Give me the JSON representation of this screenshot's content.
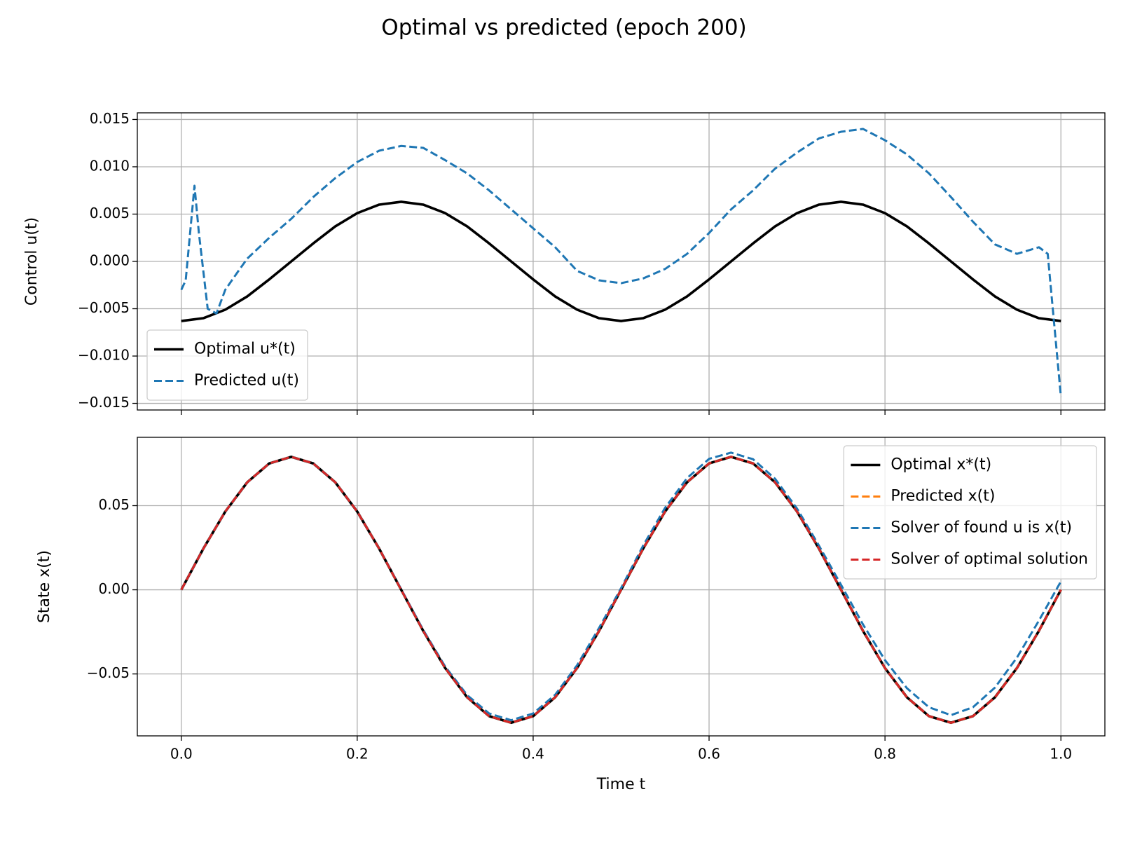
{
  "title": "Optimal vs predicted (epoch 200)",
  "chart_data": [
    {
      "type": "line",
      "y_label": "Control u(t)",
      "grid": true,
      "legend": "lower left",
      "xticklabels": false,
      "xlim": [
        -0.05,
        1.05
      ],
      "xticks": [
        0,
        0.2,
        0.4,
        0.6,
        0.8,
        1
      ],
      "ylim": [
        -0.0157,
        0.0157
      ],
      "yticks": [
        {
          "value": -0.015,
          "label": "−0.015"
        },
        {
          "value": -0.01,
          "label": "−0.010"
        },
        {
          "value": -0.005,
          "label": "−0.005"
        },
        {
          "value": 0,
          "label": "0.000"
        },
        0.005,
        {
          "value": 0.01,
          "label": "0.010"
        },
        0.015
      ],
      "x": [
        0,
        0.025,
        0.05,
        0.075,
        0.1,
        0.125,
        0.15,
        0.175,
        0.2,
        0.225,
        0.25,
        0.275,
        0.3,
        0.325,
        0.35,
        0.375,
        0.4,
        0.425,
        0.45,
        0.475,
        0.5,
        0.525,
        0.55,
        0.575,
        0.6,
        0.625,
        0.65,
        0.675,
        0.7,
        0.725,
        0.75,
        0.775,
        0.8,
        0.825,
        0.85,
        0.875,
        0.9,
        0.925,
        0.95,
        0.975,
        1
      ],
      "series": [
        {
          "name": "Optimal u*(t)",
          "color": "#000000",
          "linestyle": "solid",
          "values": [
            -0.0063,
            -0.006,
            -0.0051,
            -0.0037,
            -0.0019,
            0,
            0.0019,
            0.0037,
            0.0051,
            0.006,
            0.0063,
            0.006,
            0.0051,
            0.0037,
            0.0019,
            0,
            -0.0019,
            -0.0037,
            -0.0051,
            -0.006,
            -0.0063,
            -0.006,
            -0.0051,
            -0.0037,
            -0.0019,
            0,
            0.0019,
            0.0037,
            0.0051,
            0.006,
            0.0063,
            0.006,
            0.0051,
            0.0037,
            0.0019,
            0,
            -0.0019,
            -0.0037,
            -0.0051,
            -0.006,
            -0.0063
          ]
        },
        {
          "name": "Predicted u(t)",
          "color": "#1f77b4",
          "linestyle": "dashed",
          "x": [
            0,
            0.005,
            0.015,
            0.02,
            0.03,
            0.04,
            0.05,
            0.065,
            0.075,
            0.1,
            0.125,
            0.15,
            0.175,
            0.2,
            0.225,
            0.25,
            0.275,
            0.3,
            0.325,
            0.35,
            0.375,
            0.4,
            0.425,
            0.45,
            0.475,
            0.5,
            0.525,
            0.55,
            0.575,
            0.6,
            0.625,
            0.65,
            0.675,
            0.7,
            0.725,
            0.75,
            0.775,
            0.8,
            0.825,
            0.85,
            0.875,
            0.9,
            0.925,
            0.95,
            0.975,
            0.985,
            1
          ],
          "values": [
            -0.003,
            -0.002,
            0.008,
            0.003,
            -0.005,
            -0.0055,
            -0.003,
            -0.001,
            0.0003,
            0.0025,
            0.0045,
            0.0068,
            0.0088,
            0.0105,
            0.0117,
            0.0122,
            0.012,
            0.0107,
            0.0093,
            0.0075,
            0.0055,
            0.0035,
            0.0015,
            -0.001,
            -0.002,
            -0.0023,
            -0.0018,
            -0.0008,
            0.0008,
            0.003,
            0.0055,
            0.0075,
            0.0098,
            0.0115,
            0.013,
            0.0137,
            0.014,
            0.0128,
            0.0113,
            0.0093,
            0.0068,
            0.0042,
            0.0018,
            0.0008,
            0.0015,
            0.0008,
            -0.0143
          ]
        }
      ]
    },
    {
      "type": "line",
      "x_label": "Time t",
      "y_label": "State x(t)",
      "grid": true,
      "legend": "upper right",
      "xticklabels": true,
      "xlim": [
        -0.05,
        1.05
      ],
      "xticks": [
        {
          "value": 0,
          "label": "0.0"
        },
        0.2,
        0.4,
        0.6,
        0.8,
        {
          "value": 1,
          "label": "1.0"
        }
      ],
      "ylim": [
        -0.0868,
        0.0906
      ],
      "yticks": [
        {
          "value": -0.05,
          "label": "−0.05"
        },
        {
          "value": 0,
          "label": "0.00"
        },
        0.05
      ],
      "x": [
        0,
        0.025,
        0.05,
        0.075,
        0.1,
        0.125,
        0.15,
        0.175,
        0.2,
        0.225,
        0.25,
        0.275,
        0.3,
        0.325,
        0.35,
        0.375,
        0.4,
        0.425,
        0.45,
        0.475,
        0.5,
        0.525,
        0.55,
        0.575,
        0.6,
        0.625,
        0.65,
        0.675,
        0.7,
        0.725,
        0.75,
        0.775,
        0.8,
        0.825,
        0.85,
        0.875,
        0.9,
        0.925,
        0.95,
        0.975,
        1
      ],
      "series": [
        {
          "name": "Optimal x*(t)",
          "color": "#000000",
          "linestyle": "solid",
          "values": [
            0,
            0.0244,
            0.0465,
            0.0639,
            0.0751,
            0.079,
            0.0751,
            0.0639,
            0.0465,
            0.0244,
            0,
            -0.0244,
            -0.0465,
            -0.0639,
            -0.0751,
            -0.079,
            -0.0751,
            -0.0639,
            -0.0465,
            -0.0244,
            0,
            0.0244,
            0.0465,
            0.0639,
            0.0751,
            0.079,
            0.0751,
            0.0639,
            0.0465,
            0.0244,
            0,
            -0.0244,
            -0.0465,
            -0.0639,
            -0.0751,
            -0.079,
            -0.0751,
            -0.0639,
            -0.0465,
            -0.0244,
            0
          ]
        },
        {
          "name": "Predicted x(t)",
          "color": "#ff7f0e",
          "linestyle": "dashed",
          "values": [
            0,
            0.0244,
            0.0465,
            0.0639,
            0.0751,
            0.079,
            0.0751,
            0.0639,
            0.0465,
            0.0244,
            0,
            -0.0244,
            -0.0465,
            -0.0639,
            -0.0751,
            -0.079,
            -0.0751,
            -0.0639,
            -0.0465,
            -0.0244,
            0,
            0.0244,
            0.0465,
            0.0639,
            0.0751,
            0.079,
            0.0751,
            0.0639,
            0.0465,
            0.0244,
            0,
            -0.0244,
            -0.0465,
            -0.0639,
            -0.0751,
            -0.079,
            -0.0751,
            -0.0639,
            -0.0465,
            -0.0244,
            0
          ]
        },
        {
          "name": "Solver of found u is x(t)",
          "color": "#1f77b4",
          "linestyle": "dashed",
          "values": [
            0,
            0.0244,
            0.0465,
            0.0639,
            0.0751,
            0.079,
            0.0751,
            0.0639,
            0.0465,
            0.0244,
            0.0003,
            -0.0238,
            -0.0456,
            -0.0626,
            -0.0735,
            -0.0775,
            -0.0735,
            -0.0624,
            -0.0448,
            -0.0226,
            0.001,
            0.0262,
            0.0487,
            0.0664,
            0.0778,
            0.0815,
            0.0776,
            0.066,
            0.0483,
            0.0262,
            0.003,
            -0.0206,
            -0.0418,
            -0.0585,
            -0.0698,
            -0.0745,
            -0.0698,
            -0.0581,
            -0.0403,
            -0.0183,
            0.005
          ]
        },
        {
          "name": "Solver of optimal solution",
          "color": "#d62728",
          "linestyle": "dashed",
          "values": [
            0,
            0.0244,
            0.0465,
            0.0639,
            0.0751,
            0.079,
            0.0751,
            0.0639,
            0.0465,
            0.0244,
            0,
            -0.0244,
            -0.0465,
            -0.0639,
            -0.0751,
            -0.079,
            -0.0751,
            -0.0639,
            -0.0465,
            -0.0244,
            0,
            0.0244,
            0.0465,
            0.0639,
            0.0751,
            0.079,
            0.0751,
            0.0639,
            0.0465,
            0.0244,
            0,
            -0.0244,
            -0.0465,
            -0.0639,
            -0.0751,
            -0.079,
            -0.0751,
            -0.0639,
            -0.0465,
            -0.0244,
            0
          ]
        }
      ]
    }
  ]
}
